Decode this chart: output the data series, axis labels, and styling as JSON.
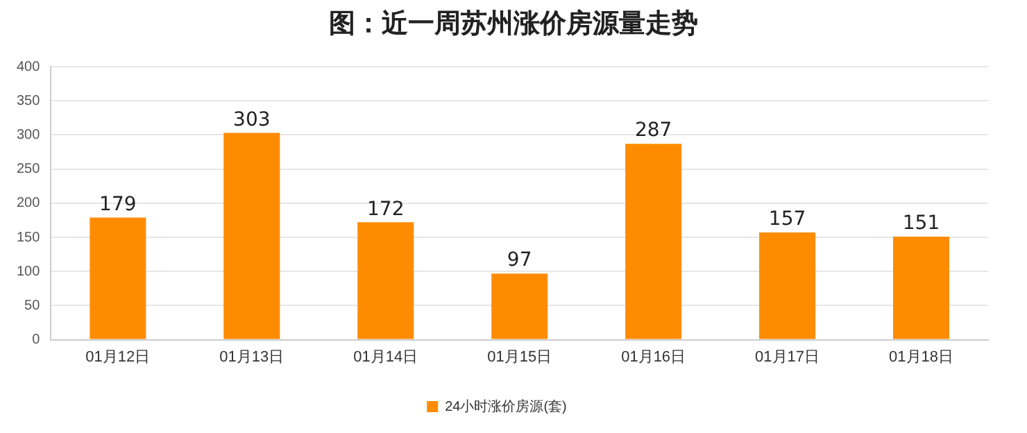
{
  "chart_data": {
    "type": "bar",
    "title": "图：近一周苏州涨价房源量走势",
    "categories": [
      "01月12日",
      "01月13日",
      "01月14日",
      "01月15日",
      "01月16日",
      "01月17日",
      "01月18日"
    ],
    "series": [
      {
        "name": "24小时涨价房源(套)",
        "color": "#ff8c00",
        "values": [
          179,
          303,
          172,
          97,
          287,
          157,
          151
        ]
      }
    ],
    "ylim": [
      0,
      400
    ],
    "yticks": [
      0,
      50,
      100,
      150,
      200,
      250,
      300,
      350,
      400
    ],
    "grid": "y",
    "legend": "bottom",
    "data_labels": true
  }
}
